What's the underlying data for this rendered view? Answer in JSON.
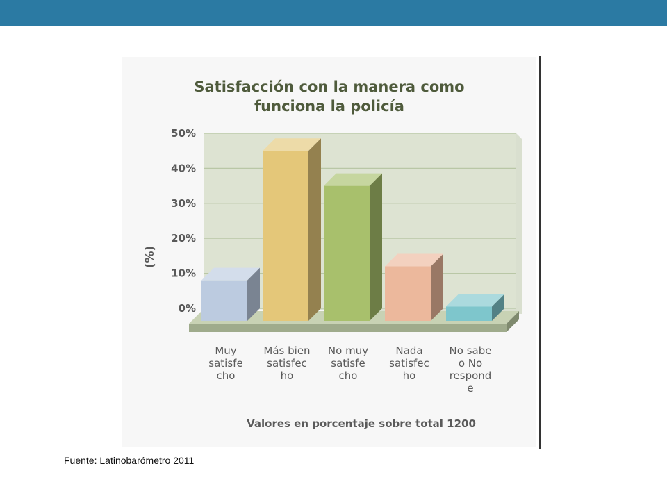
{
  "source_note": "Fuente: Latinobarómetro 2011",
  "colors": {
    "top_bar": "#2b7aa3",
    "title": "#4f5b3c",
    "bar_fills": [
      "#bccbe0",
      "#e4c779",
      "#a8c06c",
      "#ecb89c",
      "#7ec6cc"
    ]
  },
  "chart_data": {
    "type": "bar",
    "style": "3d",
    "title": [
      "Satisfacción con la manera como",
      "funciona la policía"
    ],
    "ylabel": "(%)",
    "xlabel": "Valores en porcentaje sobre total 1200",
    "ylim": [
      0,
      50
    ],
    "yticks": [
      "0%",
      "10%",
      "20%",
      "30%",
      "40%",
      "50%"
    ],
    "grid": true,
    "categories": [
      [
        "Muy",
        "satisfe",
        "cho"
      ],
      [
        "Más bien",
        "satisfec",
        "ho"
      ],
      [
        "No muy",
        "satisfe",
        "cho"
      ],
      [
        "Nada",
        "satisfec",
        "ho"
      ],
      [
        "No sabe",
        "o No",
        "respond",
        "e"
      ]
    ],
    "values": [
      8,
      45,
      35,
      12,
      0.5
    ]
  }
}
